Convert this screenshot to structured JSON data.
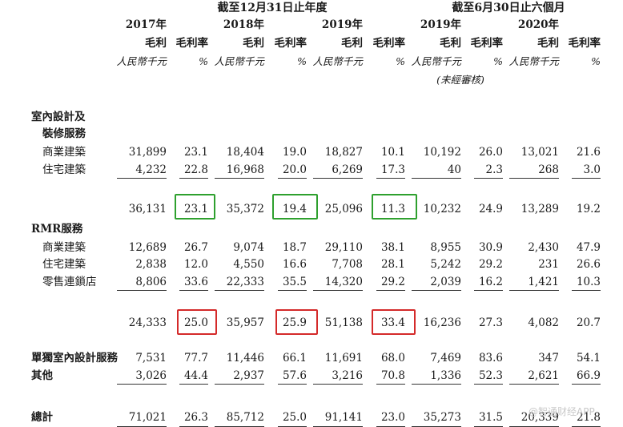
{
  "header": {
    "period_fy": "截至12月31日止年度",
    "period_half": "截至6月30日止六個月",
    "years": [
      "2017年",
      "2018年",
      "2019年",
      "2019年",
      "2020年"
    ],
    "gp_label": "毛利",
    "gm_label": "毛利率",
    "rmb_unit": "人民幣千元",
    "pct_unit": "%",
    "unaudited": "(未經審核)"
  },
  "sections": {
    "interior_title_1": "室內設計及",
    "interior_title_2": "裝修服務",
    "rmr_title": "RMR服務"
  },
  "rows": [
    {
      "label": "商業建築",
      "values": [
        "31,899",
        "23.1",
        "18,404",
        "19.0",
        "18,827",
        "10.1",
        "10,192",
        "26.0",
        "13,021",
        "21.6"
      ]
    },
    {
      "label": "住宅建築",
      "values": [
        "4,232",
        "22.8",
        "16,968",
        "20.0",
        "6,269",
        "17.3",
        "40",
        "2.3",
        "268",
        "3.0"
      ]
    },
    {
      "label": "",
      "values": [
        "36,131",
        "23.1",
        "35,372",
        "19.4",
        "25,096",
        "11.3",
        "10,232",
        "24.9",
        "13,289",
        "19.2"
      ]
    },
    {
      "label": "商業建築",
      "values": [
        "12,689",
        "26.7",
        "9,074",
        "18.7",
        "29,110",
        "38.1",
        "8,955",
        "30.9",
        "2,430",
        "47.9"
      ]
    },
    {
      "label": "住宅建築",
      "values": [
        "2,838",
        "12.0",
        "4,550",
        "16.6",
        "7,708",
        "28.1",
        "5,242",
        "29.2",
        "231",
        "26.6"
      ]
    },
    {
      "label": "零售連鎖店",
      "values": [
        "8,806",
        "33.6",
        "22,333",
        "35.5",
        "14,320",
        "29.2",
        "2,039",
        "16.2",
        "1,421",
        "10.3"
      ]
    },
    {
      "label": "",
      "values": [
        "24,333",
        "25.0",
        "35,957",
        "25.9",
        "51,138",
        "33.4",
        "16,236",
        "27.3",
        "4,082",
        "20.7"
      ]
    },
    {
      "label": "單獨室內設計服務",
      "values": [
        "7,531",
        "77.7",
        "11,446",
        "66.1",
        "11,691",
        "68.0",
        "7,469",
        "83.6",
        "347",
        "54.1"
      ]
    },
    {
      "label": "其他",
      "values": [
        "3,026",
        "44.4",
        "2,937",
        "57.6",
        "3,216",
        "70.8",
        "1,336",
        "52.3",
        "2,621",
        "66.9"
      ]
    },
    {
      "label": "總計",
      "values": [
        "71,021",
        "26.3",
        "85,712",
        "25.0",
        "91,141",
        "23.0",
        "35,273",
        "31.5",
        "20,339",
        "21.8"
      ]
    }
  ],
  "highlight_colors": {
    "green": "#2ea02e",
    "red": "#d42a2a"
  },
  "watermark": "@智通财经APP"
}
